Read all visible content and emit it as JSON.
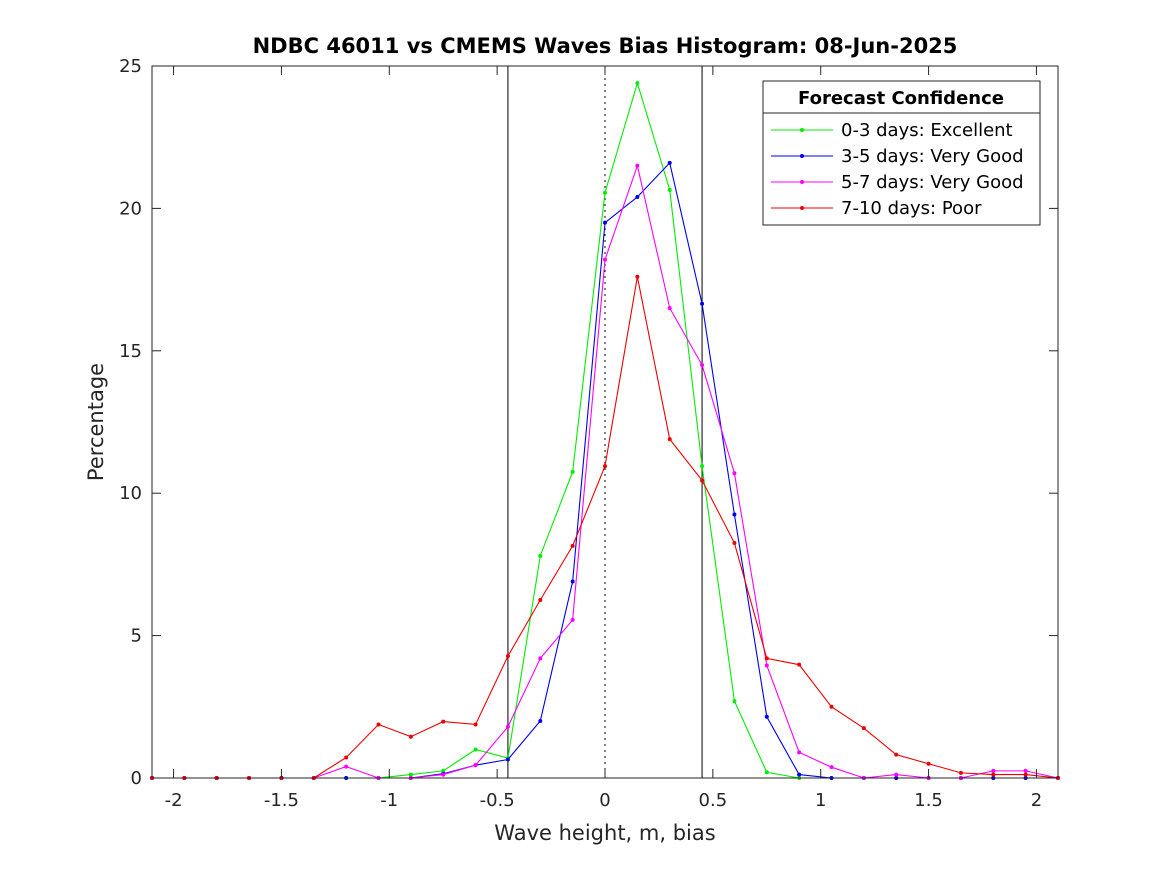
{
  "chart_data": {
    "type": "line",
    "title": "NDBC 46011 vs CMEMS Waves Bias Histogram: 08-Jun-2025",
    "xlabel": "Wave height, m, bias",
    "ylabel": "Percentage",
    "xlim": [
      -2.1,
      2.1
    ],
    "ylim": [
      0,
      25
    ],
    "xticks": [
      -2,
      -1.5,
      -1,
      -0.5,
      0,
      0.5,
      1,
      1.5,
      2
    ],
    "xtick_labels": [
      "-2",
      "-1.5",
      "-1",
      "-0.5",
      "0",
      "0.5",
      "1",
      "1.5",
      "2"
    ],
    "yticks": [
      0,
      5,
      10,
      15,
      20,
      25
    ],
    "ytick_labels": [
      "0",
      "5",
      "10",
      "15",
      "20",
      "25"
    ],
    "grid": false,
    "vertical_lines": [
      {
        "x": -0.45,
        "style": "solid"
      },
      {
        "x": 0,
        "style": "dotted"
      },
      {
        "x": 0.45,
        "style": "solid"
      }
    ],
    "legend": {
      "title": "Forecast Confidence",
      "placement": "top-right"
    },
    "x": [
      -2.1,
      -1.95,
      -1.8,
      -1.65,
      -1.5,
      -1.35,
      -1.2,
      -1.05,
      -0.9,
      -0.75,
      -0.6,
      -0.45,
      -0.3,
      -0.15,
      0,
      0.15,
      0.3,
      0.45,
      0.6,
      0.75,
      0.9,
      1.05,
      1.2,
      1.35,
      1.5,
      1.65,
      1.8,
      1.95,
      2.1
    ],
    "series": [
      {
        "name": "0-3 days: Excellent",
        "color": "#00ee00",
        "values": [
          0,
          0,
          0,
          0,
          0,
          0,
          0,
          0,
          0.12,
          0.25,
          1.0,
          0.7,
          7.8,
          10.75,
          20.55,
          24.4,
          20.65,
          10.95,
          2.7,
          0.2,
          0,
          0,
          0,
          0,
          0,
          0,
          0,
          0,
          0
        ]
      },
      {
        "name": "3-5 days: Very Good",
        "color": "#0000ee",
        "values": [
          0,
          0,
          0,
          0,
          0,
          0,
          0,
          0,
          0,
          0.15,
          0.45,
          0.65,
          2.0,
          6.9,
          19.5,
          20.4,
          21.6,
          16.65,
          9.25,
          2.15,
          0.12,
          0,
          0,
          0,
          0,
          0,
          0,
          0,
          0
        ]
      },
      {
        "name": "5-7 days: Very Good",
        "color": "#ff00ff",
        "values": [
          0,
          0,
          0,
          0,
          0,
          0,
          0.4,
          0,
          0,
          0.12,
          0.45,
          1.8,
          4.2,
          5.55,
          18.2,
          21.5,
          16.5,
          14.5,
          10.7,
          3.95,
          0.9,
          0.38,
          0,
          0.12,
          0,
          0,
          0.25,
          0.25,
          0
        ]
      },
      {
        "name": "7-10 days: Poor",
        "color": "#ee0000",
        "values": [
          0,
          0,
          0,
          0,
          0,
          0,
          0.72,
          1.88,
          1.45,
          1.98,
          1.88,
          4.28,
          6.25,
          8.15,
          10.95,
          17.6,
          11.9,
          10.45,
          8.25,
          4.2,
          3.98,
          2.5,
          1.75,
          0.82,
          0.5,
          0.18,
          0.12,
          0.12,
          0
        ]
      }
    ]
  }
}
